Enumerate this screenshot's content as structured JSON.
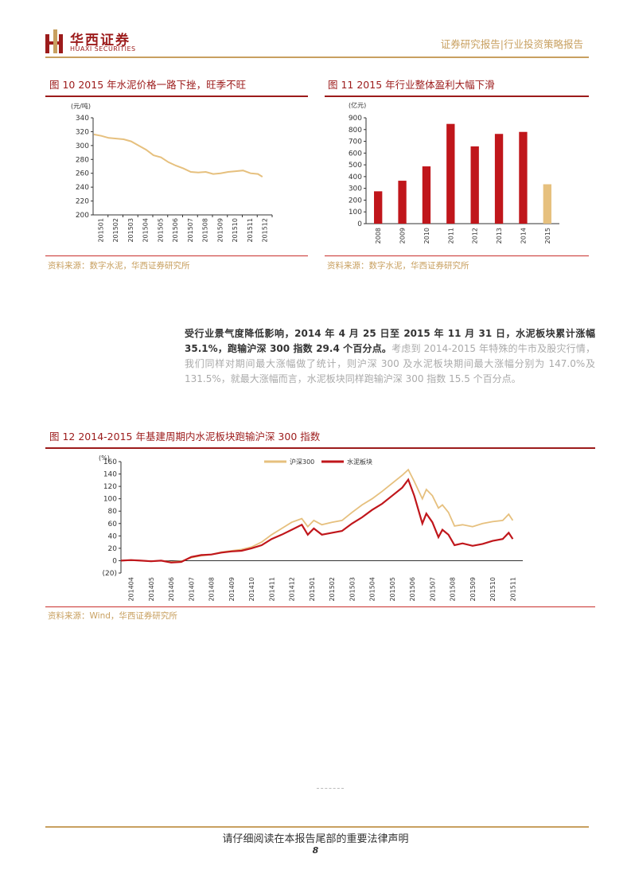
{
  "header": {
    "logo_cn": "华西证券",
    "logo_en": "HUAXI SECURITIES",
    "report_type": "证券研究报告|行业投资策略报告"
  },
  "fig10": {
    "title": "图 10   2015 年水泥价格一路下挫，旺季不旺",
    "source": "资料来源：数字水泥，华西证券研究所",
    "chart_data": {
      "type": "line",
      "title": "",
      "ylabel": "(元/吨)",
      "ylim": [
        200,
        340
      ],
      "yticks": [
        200,
        220,
        240,
        260,
        280,
        300,
        320,
        340
      ],
      "xticks": [
        "201501",
        "201502",
        "201503",
        "201504",
        "201505",
        "201506",
        "201507",
        "201508",
        "201509",
        "201510",
        "201511",
        "201512"
      ],
      "color": "#e6c07e",
      "x": [
        0,
        0.5,
        1,
        1.5,
        2,
        2.5,
        3,
        3.5,
        4,
        4.5,
        5,
        5.5,
        6,
        6.5,
        7,
        7.5,
        8,
        8.5,
        9,
        9.5,
        10,
        10.5,
        11,
        11.3
      ],
      "values": [
        316,
        314,
        311,
        310,
        309,
        306,
        300,
        294,
        286,
        283,
        276,
        271,
        267,
        262,
        261,
        262,
        259,
        260,
        262,
        263,
        264,
        260,
        259,
        255
      ]
    }
  },
  "fig11": {
    "title": "图 11   2015 年行业整体盈利大幅下滑",
    "source": "资料来源：数字水泥，华西证券研究所",
    "chart_data": {
      "type": "bar",
      "title": "",
      "ylabel": "(亿元)",
      "ylim": [
        0,
        900
      ],
      "yticks": [
        0,
        100,
        200,
        300,
        400,
        500,
        600,
        700,
        800,
        900
      ],
      "categories": [
        "2008",
        "2009",
        "2010",
        "2011",
        "2012",
        "2013",
        "2014",
        "2015"
      ],
      "values": [
        275,
        365,
        487,
        848,
        657,
        763,
        780,
        335
      ],
      "colors": [
        "#c0161b",
        "#c0161b",
        "#c0161b",
        "#c0161b",
        "#c0161b",
        "#c0161b",
        "#c0161b",
        "#e6c07e"
      ]
    }
  },
  "paragraph": {
    "bold": "受行业景气度降低影响，2014 年 4 月 25 日至 2015 年 11 月 31 日，水泥板块累计涨幅 35.1%，跑输沪深 300 指数 29.4 个百分点。",
    "normal": "考虑到 2014-2015 年特殊的牛市及股灾行情，我们同样对期间最大涨幅做了统计，则沪深 300 及水泥板块期间最大涨幅分别为 147.0%及 131.5%，就最大涨幅而言，水泥板块同样跑输沪深 300 指数 15.5 个百分点。"
  },
  "fig12": {
    "title": "图 12   2014-2015 年基建周期内水泥板块跑输沪深 300 指数",
    "source": "资料来源：Wind，华西证券研究所",
    "chart_data": {
      "type": "line",
      "title": "",
      "ylabel": "(%)",
      "ylim": [
        -20,
        160
      ],
      "yticks": [
        "(20)",
        "0",
        "20",
        "40",
        "60",
        "80",
        "100",
        "120",
        "140",
        "160"
      ],
      "ytick_values": [
        -20,
        0,
        20,
        40,
        60,
        80,
        100,
        120,
        140,
        160
      ],
      "legend_position": "top-center",
      "xticks": [
        "201404",
        "201405",
        "201406",
        "201407",
        "201408",
        "201409",
        "201410",
        "201411",
        "201412",
        "201501",
        "201502",
        "201503",
        "201504",
        "201505",
        "201506",
        "201507",
        "201508",
        "201509",
        "201510",
        "201511"
      ],
      "x": [
        0,
        0.5,
        1,
        1.5,
        2,
        2.5,
        3,
        3.5,
        4,
        4.5,
        5,
        5.5,
        6,
        6.5,
        7,
        7.5,
        8,
        8.5,
        9,
        9.3,
        9.6,
        10,
        10.5,
        11,
        11.5,
        12,
        12.5,
        13,
        13.5,
        14,
        14.3,
        14.6,
        15,
        15.2,
        15.5,
        15.8,
        16,
        16.3,
        16.6,
        17,
        17.5,
        18,
        18.5,
        19,
        19.3,
        19.5
      ],
      "series": [
        {
          "name": "沪深300",
          "color": "#e6c07e",
          "values": [
            0,
            1,
            0,
            -1,
            0,
            -2,
            -1,
            5,
            8,
            10,
            14,
            16,
            18,
            22,
            30,
            42,
            52,
            62,
            68,
            55,
            65,
            58,
            62,
            65,
            78,
            90,
            100,
            112,
            125,
            138,
            147,
            128,
            100,
            115,
            105,
            85,
            90,
            78,
            56,
            58,
            55,
            60,
            63,
            65,
            75,
            65
          ]
        },
        {
          "name": "水泥板块",
          "color": "#c0161b",
          "values": [
            0,
            1,
            0,
            -1,
            0,
            -3,
            -2,
            6,
            9,
            10,
            13,
            15,
            16,
            20,
            25,
            35,
            42,
            50,
            58,
            42,
            52,
            42,
            45,
            48,
            60,
            70,
            82,
            92,
            105,
            118,
            131,
            105,
            60,
            76,
            62,
            38,
            50,
            42,
            25,
            28,
            24,
            27,
            32,
            35,
            45,
            35
          ]
        }
      ]
    }
  },
  "footer": {
    "notice": "请仔细阅读在本报告尾部的重要法律声明",
    "page": "8"
  }
}
